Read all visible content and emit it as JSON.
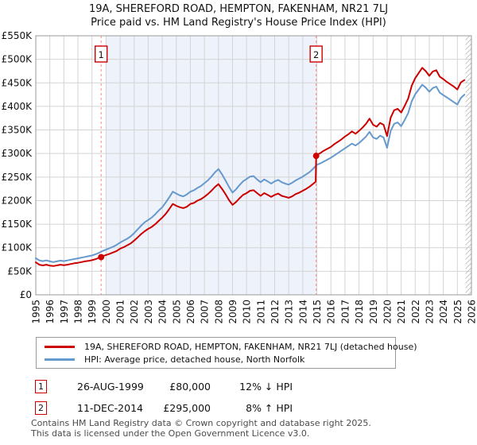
{
  "title": {
    "line1": "19A, SHEREFORD ROAD, HEMPTON, FAKENHAM, NR21 7LJ",
    "line2": "Price paid vs. HM Land Registry's House Price Index (HPI)"
  },
  "colors": {
    "property_line": "#cc0000",
    "hpi_line": "#6699cc",
    "sale_dashed_line": "#ff8585",
    "shaded_period": "#eef2fb",
    "gridline": "#d4d4d4",
    "plot_border": "#999999",
    "hatch": "#c4c4c4",
    "sale_dot": "#cc0000"
  },
  "chart_data": {
    "type": "line",
    "x_axis": {
      "ticks": [
        1995,
        1996,
        1997,
        1998,
        1999,
        2000,
        2001,
        2002,
        2003,
        2004,
        2005,
        2006,
        2007,
        2008,
        2009,
        2010,
        2011,
        2012,
        2013,
        2014,
        2015,
        2016,
        2017,
        2018,
        2019,
        2020,
        2021,
        2022,
        2023,
        2024,
        2025,
        2026
      ],
      "min": 1995,
      "max": 2026
    },
    "y_axis": {
      "ticks": [
        "£0",
        "£50K",
        "£100K",
        "£150K",
        "£200K",
        "£250K",
        "£300K",
        "£350K",
        "£400K",
        "£450K",
        "£500K",
        "£550K"
      ],
      "min": 0,
      "max": 550000
    },
    "grid": true,
    "legend_position": "bottom",
    "shaded_region": {
      "from": 2000.0,
      "to": 2014.95
    },
    "hatch_region": {
      "from": 2025.58,
      "to": 2026.0
    },
    "markers": [
      {
        "label": "1",
        "x": 1999.65,
        "y": 80000
      },
      {
        "label": "2",
        "x": 2014.95,
        "y": 295000
      }
    ],
    "series": [
      {
        "name": "HPI: Average price, detached house, North Norfolk",
        "color": "#6699cc",
        "x0": 1995.0,
        "dx": 0.25,
        "values": [
          78000,
          73000,
          71500,
          73000,
          71000,
          69500,
          71000,
          72500,
          71500,
          73000,
          74500,
          76000,
          77500,
          79000,
          80500,
          82000,
          83500,
          86000,
          89000,
          93000,
          96000,
          99000,
          102000,
          106000,
          111000,
          115000,
          119000,
          124000,
          131000,
          139000,
          147000,
          154000,
          159000,
          164000,
          171000,
          179000,
          186000,
          196000,
          207000,
          219000,
          215000,
          211000,
          209000,
          213000,
          219000,
          222000,
          227000,
          231000,
          237000,
          243000,
          251000,
          260000,
          267000,
          256000,
          243000,
          229000,
          217000,
          224000,
          233000,
          241000,
          246000,
          251000,
          252000,
          245000,
          239000,
          245000,
          241000,
          236000,
          241000,
          244000,
          239000,
          236000,
          234000,
          238000,
          243000,
          247000,
          251000,
          256000,
          261000,
          268000,
          276000,
          279000,
          283000,
          287000,
          291000,
          296000,
          301000,
          306000,
          311000,
          316000,
          321000,
          317000,
          322000,
          329000,
          336000,
          346000,
          334000,
          331000,
          338000,
          334000,
          312000,
          348000,
          363000,
          366000,
          358000,
          371000,
          386000,
          411000,
          426000,
          436000,
          446000,
          440000,
          431000,
          439000,
          442000,
          429000,
          424000,
          419000,
          414000,
          409000,
          404000,
          418000,
          425000
        ]
      },
      {
        "name": "19A, SHEREFORD ROAD, HEMPTON, FAKENHAM, NR21 7LJ (detached house)",
        "color": "#cc0000",
        "points": [
          [
            1995.0,
            69000
          ],
          [
            1995.25,
            64000
          ],
          [
            1995.5,
            62500
          ],
          [
            1995.75,
            64000
          ],
          [
            1996.0,
            62000
          ],
          [
            1996.25,
            61000
          ],
          [
            1996.5,
            62500
          ],
          [
            1996.75,
            64000
          ],
          [
            1997.0,
            63000
          ],
          [
            1997.25,
            64000
          ],
          [
            1997.5,
            65500
          ],
          [
            1997.75,
            67000
          ],
          [
            1998.0,
            68000
          ],
          [
            1998.25,
            69500
          ],
          [
            1998.5,
            71000
          ],
          [
            1998.75,
            72000
          ],
          [
            1999.0,
            73500
          ],
          [
            1999.25,
            75500
          ],
          [
            1999.5,
            78500
          ],
          [
            1999.65,
            80000
          ],
          [
            1999.75,
            82000
          ],
          [
            2000.0,
            84500
          ],
          [
            2000.25,
            87000
          ],
          [
            2000.5,
            90000
          ],
          [
            2000.75,
            93000
          ],
          [
            2001.0,
            98000
          ],
          [
            2001.25,
            101000
          ],
          [
            2001.5,
            105000
          ],
          [
            2001.75,
            109000
          ],
          [
            2002.0,
            115000
          ],
          [
            2002.25,
            122000
          ],
          [
            2002.5,
            129000
          ],
          [
            2002.75,
            135000
          ],
          [
            2003.0,
            140000
          ],
          [
            2003.25,
            144000
          ],
          [
            2003.5,
            150000
          ],
          [
            2003.75,
            157000
          ],
          [
            2004.0,
            164000
          ],
          [
            2004.25,
            172000
          ],
          [
            2004.5,
            182000
          ],
          [
            2004.75,
            193000
          ],
          [
            2005.0,
            189000
          ],
          [
            2005.25,
            186000
          ],
          [
            2005.5,
            184000
          ],
          [
            2005.75,
            187000
          ],
          [
            2006.0,
            193000
          ],
          [
            2006.25,
            195000
          ],
          [
            2006.5,
            200000
          ],
          [
            2006.75,
            203000
          ],
          [
            2007.0,
            208000
          ],
          [
            2007.25,
            214000
          ],
          [
            2007.5,
            221000
          ],
          [
            2007.75,
            229000
          ],
          [
            2008.0,
            235000
          ],
          [
            2008.25,
            225000
          ],
          [
            2008.5,
            214000
          ],
          [
            2008.75,
            201000
          ],
          [
            2009.0,
            191000
          ],
          [
            2009.25,
            197000
          ],
          [
            2009.5,
            205000
          ],
          [
            2009.75,
            212000
          ],
          [
            2010.0,
            216000
          ],
          [
            2010.25,
            221000
          ],
          [
            2010.5,
            222000
          ],
          [
            2010.75,
            216000
          ],
          [
            2011.0,
            210000
          ],
          [
            2011.25,
            216000
          ],
          [
            2011.5,
            212000
          ],
          [
            2011.75,
            208000
          ],
          [
            2012.0,
            212000
          ],
          [
            2012.25,
            215000
          ],
          [
            2012.5,
            210000
          ],
          [
            2012.75,
            208000
          ],
          [
            2013.0,
            206000
          ],
          [
            2013.25,
            209000
          ],
          [
            2013.5,
            214000
          ],
          [
            2013.75,
            217000
          ],
          [
            2014.0,
            221000
          ],
          [
            2014.25,
            225000
          ],
          [
            2014.5,
            230000
          ],
          [
            2014.75,
            236000
          ],
          [
            2014.92,
            240000
          ],
          [
            2014.95,
            295000
          ],
          [
            2015.0,
            297000
          ],
          [
            2015.25,
            301000
          ],
          [
            2015.5,
            306000
          ],
          [
            2015.75,
            310000
          ],
          [
            2016.0,
            314000
          ],
          [
            2016.25,
            320000
          ],
          [
            2016.5,
            325000
          ],
          [
            2016.75,
            330000
          ],
          [
            2017.0,
            336000
          ],
          [
            2017.25,
            341000
          ],
          [
            2017.5,
            347000
          ],
          [
            2017.75,
            342000
          ],
          [
            2018.0,
            348000
          ],
          [
            2018.25,
            355000
          ],
          [
            2018.5,
            363000
          ],
          [
            2018.75,
            374000
          ],
          [
            2019.0,
            361000
          ],
          [
            2019.25,
            357000
          ],
          [
            2019.5,
            365000
          ],
          [
            2019.75,
            361000
          ],
          [
            2020.0,
            337000
          ],
          [
            2020.25,
            376000
          ],
          [
            2020.5,
            392000
          ],
          [
            2020.75,
            395000
          ],
          [
            2021.0,
            387000
          ],
          [
            2021.25,
            401000
          ],
          [
            2021.5,
            417000
          ],
          [
            2021.75,
            444000
          ],
          [
            2022.0,
            460000
          ],
          [
            2022.25,
            471000
          ],
          [
            2022.5,
            482000
          ],
          [
            2022.75,
            475000
          ],
          [
            2023.0,
            465000
          ],
          [
            2023.25,
            474000
          ],
          [
            2023.5,
            477000
          ],
          [
            2023.75,
            463000
          ],
          [
            2024.0,
            458000
          ],
          [
            2024.25,
            452000
          ],
          [
            2024.5,
            447000
          ],
          [
            2024.75,
            442000
          ],
          [
            2025.0,
            436000
          ],
          [
            2025.25,
            451000
          ],
          [
            2025.5,
            456000
          ]
        ]
      }
    ]
  },
  "legend": {
    "items": [
      {
        "label": "19A, SHEREFORD ROAD, HEMPTON, FAKENHAM, NR21 7LJ (detached house)",
        "color": "#cc0000"
      },
      {
        "label": "HPI: Average price, detached house, North Norfolk",
        "color": "#6699cc"
      }
    ]
  },
  "transactions": [
    {
      "num": "1",
      "date": "26-AUG-1999",
      "price": "£80,000",
      "hpi_delta": "12% ↓ HPI"
    },
    {
      "num": "2",
      "date": "11-DEC-2014",
      "price": "£295,000",
      "hpi_delta": "8% ↑ HPI"
    }
  ],
  "footer": {
    "line1": "Contains HM Land Registry data © Crown copyright and database right 2025.",
    "line2": "This data is licensed under the Open Government Licence v3.0."
  }
}
